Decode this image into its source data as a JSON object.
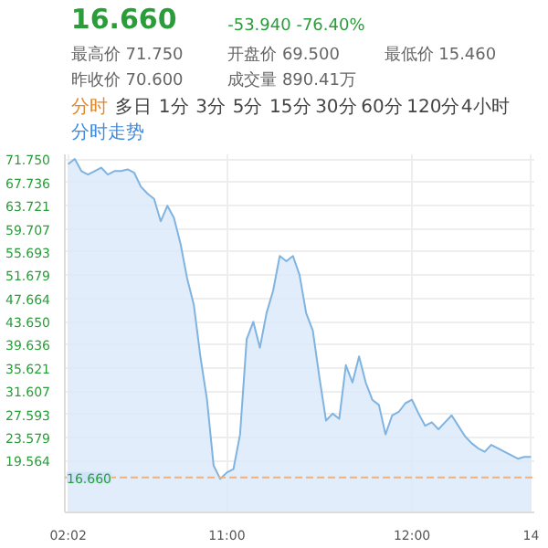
{
  "chart_data": {
    "type": "area",
    "title": "16.660",
    "subtitle": "-53.940 -76.40%",
    "annotations": [
      "最高价 71.750",
      "开盘价 69.500",
      "最低价 15.460",
      "昨收价 70.600",
      "成交量 890.41万",
      "分时",
      "多日",
      "1分",
      "3分",
      "5分",
      "15分",
      "30分",
      "60分",
      "120分",
      "4小时",
      "分时走势"
    ],
    "categories": [
      "02:02",
      null,
      null,
      null,
      null,
      null,
      null,
      null,
      null,
      null,
      null,
      null,
      null,
      null,
      null,
      null,
      null,
      null,
      null,
      null,
      null,
      null,
      null,
      null,
      "11:00",
      null,
      null,
      null,
      null,
      null,
      null,
      null,
      null,
      null,
      null,
      null,
      null,
      null,
      null,
      null,
      null,
      null,
      null,
      null,
      null,
      null,
      null,
      null,
      null,
      null,
      null,
      null,
      "12:00",
      null,
      null,
      null,
      null,
      null,
      null,
      null,
      null,
      null,
      null,
      null,
      null,
      null,
      null,
      null,
      null,
      null,
      "14"
    ],
    "series": [
      {
        "color": "#7fb3e0",
        "values": [
          70.9,
          71.8,
          69.7,
          69.1,
          69.7,
          70.3,
          69.1,
          69.7,
          69.7,
          70.0,
          69.4,
          67.0,
          65.8,
          64.9,
          61.0,
          63.7,
          61.6,
          57.1,
          51.1,
          46.6,
          37.6,
          30.1,
          18.7,
          16.4,
          17.5,
          18.1,
          24.1,
          40.6,
          43.6,
          39.1,
          45.1,
          49.0,
          55.0,
          54.1,
          55.0,
          51.7,
          45.1,
          42.1,
          34.0,
          26.5,
          27.7,
          26.8,
          36.1,
          33.1,
          37.6,
          33.1,
          30.1,
          29.2,
          24.1,
          27.4,
          28.0,
          29.5,
          30.1,
          27.7,
          25.6,
          26.2,
          25.0,
          26.2,
          27.4,
          25.6,
          23.8,
          22.6,
          21.7,
          21.1,
          22.3,
          21.7,
          21.1,
          20.5,
          19.9,
          20.2,
          20.2
        ]
      }
    ],
    "ylim": [
      10.6,
      72.6
    ],
    "yticks": [
      {
        "value": 71.75,
        "label": "71.750"
      },
      {
        "value": 67.736,
        "label": "67.736"
      },
      {
        "value": 63.721,
        "label": "63.721"
      },
      {
        "value": 59.707,
        "label": "59.707"
      },
      {
        "value": 55.693,
        "label": "55.693"
      },
      {
        "value": 51.679,
        "label": "51.679"
      },
      {
        "value": 47.664,
        "label": "47.664"
      },
      {
        "value": 43.65,
        "label": "43.650"
      },
      {
        "value": 39.636,
        "label": "39.636"
      },
      {
        "value": 35.621,
        "label": "35.621"
      },
      {
        "value": 31.607,
        "label": "31.607"
      },
      {
        "value": 27.593,
        "label": "27.593"
      },
      {
        "value": 23.579,
        "label": "23.579"
      },
      {
        "value": 19.564,
        "label": "19.564"
      }
    ],
    "ref_lines": [
      {
        "axis": "y",
        "value": 16.66,
        "label": "16.660",
        "color": "#f0b27a",
        "line_style": "dashed"
      }
    ],
    "grid": true
  }
}
